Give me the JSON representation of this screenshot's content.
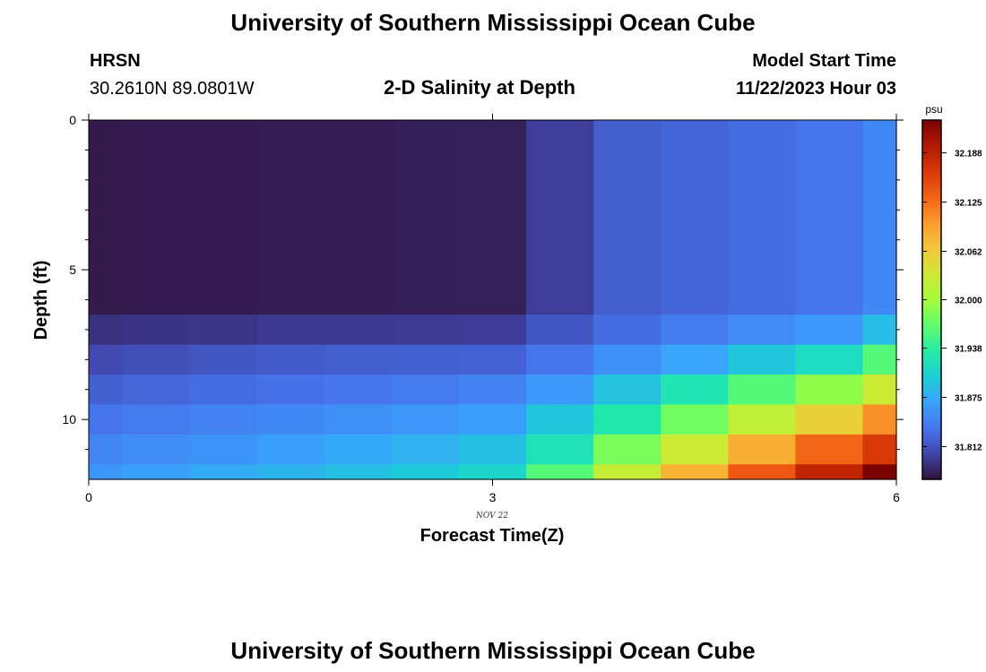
{
  "header": {
    "title_top": "University of Southern Mississippi Ocean Cube",
    "station": "HRSN",
    "coords": "30.2610N  89.0801W",
    "chart_title": "2-D Salinity at Depth",
    "model_start_label": "Model Start Time",
    "model_start_value": "11/22/2023 Hour 03",
    "title_bottom": "University of Southern Mississippi Ocean Cube"
  },
  "colors": {
    "scale": [
      "#30123b",
      "#4145ab",
      "#4675ed",
      "#39a2fc",
      "#1bcfd4",
      "#24eca6",
      "#61fc6c",
      "#a4fc3b",
      "#d1e834",
      "#f3c63a",
      "#fe9b2d",
      "#f36315",
      "#d93806",
      "#b11901",
      "#7a0402"
    ]
  },
  "chart_data": {
    "type": "heatmap",
    "xlabel": "Forecast Time(Z)",
    "ylabel": "Depth (ft)",
    "x_date_label": "NOV 22",
    "xlim": [
      0,
      6
    ],
    "ylim": [
      0,
      12
    ],
    "x_ticks": [
      0,
      3,
      6
    ],
    "y_ticks": [
      0,
      5,
      10
    ],
    "units": "psu",
    "colorbar_range": [
      31.77,
      32.23
    ],
    "colorbar_ticks": [
      "31.812",
      "31.875",
      "31.938",
      "32.000",
      "32.062",
      "32.125",
      "32.188"
    ],
    "x_edges": [
      0,
      0.25,
      0.75,
      1.25,
      1.75,
      2.25,
      2.75,
      3.25,
      3.75,
      4.25,
      4.75,
      5.25,
      5.75,
      6.0
    ],
    "y_edges": [
      0,
      6.5,
      7.5,
      8.5,
      9.5,
      10.5,
      11.5,
      12
    ],
    "values": [
      [
        31.775,
        31.776,
        31.776,
        31.777,
        31.777,
        31.778,
        31.779,
        31.798,
        31.82,
        31.825,
        31.83,
        31.835,
        31.85
      ],
      [
        31.79,
        31.792,
        31.793,
        31.795,
        31.795,
        31.796,
        31.797,
        31.815,
        31.83,
        31.84,
        31.852,
        31.862,
        31.888
      ],
      [
        31.805,
        31.81,
        31.815,
        31.818,
        31.82,
        31.822,
        31.823,
        31.835,
        31.855,
        31.87,
        31.895,
        31.915,
        31.96
      ],
      [
        31.822,
        31.826,
        31.83,
        31.833,
        31.836,
        31.84,
        31.845,
        31.862,
        31.892,
        31.925,
        31.96,
        31.99,
        32.03
      ],
      [
        31.835,
        31.84,
        31.845,
        31.85,
        31.855,
        31.86,
        31.866,
        31.895,
        31.93,
        31.975,
        32.02,
        32.055,
        32.105
      ],
      [
        31.848,
        31.853,
        31.858,
        31.866,
        31.873,
        31.88,
        31.89,
        31.922,
        31.98,
        32.03,
        32.085,
        32.13,
        32.165
      ],
      [
        31.86,
        31.868,
        31.875,
        31.882,
        31.89,
        31.898,
        31.908,
        31.96,
        32.025,
        32.08,
        32.14,
        32.185,
        32.23
      ]
    ]
  }
}
